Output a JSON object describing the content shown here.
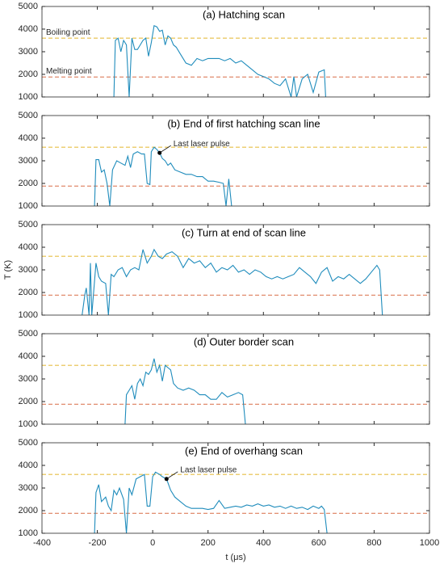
{
  "chart_data": [
    {
      "type": "line",
      "title": "(a) Hatching scan",
      "xlim": [
        -400,
        1000
      ],
      "ylim": [
        1000,
        5000
      ],
      "yticks": [
        1000,
        2000,
        3000,
        4000,
        5000
      ],
      "hlines": [
        {
          "value": 3600,
          "label": "Boiling point",
          "color": "#e6bf45"
        },
        {
          "value": 1880,
          "label": "Melting point",
          "color": "#dd7f5c"
        }
      ],
      "color": "#1f8cbc",
      "x": [
        -140,
        -135,
        -125,
        -115,
        -105,
        -95,
        -85,
        -75,
        -65,
        -55,
        -45,
        -35,
        -25,
        -15,
        -5,
        5,
        15,
        25,
        35,
        45,
        55,
        65,
        75,
        85,
        100,
        120,
        140,
        160,
        180,
        200,
        220,
        240,
        260,
        280,
        300,
        320,
        340,
        360,
        380,
        400,
        420,
        440,
        460,
        480,
        500,
        510,
        520,
        540,
        560,
        580,
        600,
        620,
        625
      ],
      "values": [
        1000,
        3500,
        3600,
        3000,
        3500,
        3300,
        1000,
        3600,
        3100,
        3100,
        3300,
        3500,
        3600,
        2800,
        3400,
        4150,
        4100,
        3900,
        3950,
        3300,
        3700,
        3600,
        3300,
        3200,
        2900,
        2500,
        2400,
        2700,
        2600,
        2700,
        2700,
        2700,
        2600,
        2700,
        2500,
        2600,
        2400,
        2200,
        2000,
        1900,
        1800,
        1600,
        1500,
        1800,
        1000,
        1900,
        1000,
        1800,
        2000,
        1200,
        2100,
        2200,
        1000
      ]
    },
    {
      "type": "line",
      "title": "(b) End of first hatching scan line",
      "xlim": [
        -400,
        1000
      ],
      "ylim": [
        1000,
        5000
      ],
      "yticks": [
        1000,
        2000,
        3000,
        4000,
        5000
      ],
      "hlines": [
        {
          "value": 3600,
          "color": "#e6bf45"
        },
        {
          "value": 1880,
          "color": "#dd7f5c"
        }
      ],
      "annotations": [
        {
          "text": "Last laser pulse",
          "x": 25,
          "y": 3350
        }
      ],
      "color": "#1f8cbc",
      "x": [
        -210,
        -205,
        -195,
        -185,
        -175,
        -165,
        -155,
        -145,
        -130,
        -115,
        -100,
        -90,
        -80,
        -70,
        -55,
        -40,
        -30,
        -20,
        -10,
        -5,
        5,
        15,
        25,
        35,
        45,
        55,
        65,
        80,
        100,
        120,
        140,
        160,
        180,
        200,
        220,
        240,
        255,
        265,
        275,
        285
      ],
      "values": [
        1000,
        3050,
        3050,
        2500,
        2600,
        2000,
        1000,
        2600,
        3000,
        2900,
        2800,
        3200,
        2700,
        3300,
        3400,
        3300,
        3300,
        2000,
        1950,
        3400,
        3600,
        3500,
        3350,
        3100,
        3000,
        2800,
        2900,
        2600,
        2500,
        2400,
        2400,
        2300,
        2300,
        2100,
        2100,
        2050,
        2000,
        1000,
        2200,
        1000
      ]
    },
    {
      "type": "line",
      "title": "(c) Turn at end of scan line",
      "ylabel": "T (K)",
      "xlim": [
        -400,
        1000
      ],
      "ylim": [
        1000,
        5000
      ],
      "yticks": [
        1000,
        2000,
        3000,
        4000,
        5000
      ],
      "hlines": [
        {
          "value": 3600,
          "color": "#e6bf45"
        },
        {
          "value": 1880,
          "color": "#dd7f5c"
        }
      ],
      "color": "#1f8cbc",
      "x": [
        -255,
        -245,
        -240,
        -230,
        -225,
        -220,
        -205,
        -195,
        -185,
        -170,
        -160,
        -150,
        -140,
        -125,
        -110,
        -95,
        -80,
        -65,
        -50,
        -35,
        -20,
        -5,
        5,
        20,
        35,
        50,
        70,
        90,
        110,
        130,
        150,
        170,
        190,
        210,
        230,
        250,
        270,
        290,
        310,
        330,
        350,
        370,
        390,
        410,
        430,
        450,
        470,
        490,
        510,
        530,
        550,
        570,
        590,
        610,
        630,
        650,
        670,
        690,
        710,
        730,
        750,
        770,
        790,
        810,
        820,
        830
      ],
      "values": [
        1000,
        1900,
        2200,
        1000,
        3300,
        1000,
        3300,
        2700,
        2500,
        2400,
        1000,
        2800,
        2700,
        3000,
        3100,
        2700,
        3000,
        3100,
        3000,
        3900,
        3300,
        3600,
        3900,
        3600,
        3500,
        3700,
        3800,
        3600,
        3100,
        3500,
        3300,
        3400,
        3100,
        3300,
        2900,
        3100,
        3000,
        3200,
        2900,
        3000,
        2800,
        3000,
        2900,
        2700,
        2600,
        2700,
        2600,
        2700,
        2800,
        3100,
        2900,
        2700,
        2400,
        2900,
        3100,
        2500,
        2700,
        2600,
        2800,
        2600,
        2400,
        2600,
        2900,
        3200,
        3000,
        1000
      ]
    },
    {
      "type": "line",
      "title": "(d) Outer border scan",
      "xlim": [
        -400,
        1000
      ],
      "ylim": [
        1000,
        5000
      ],
      "yticks": [
        1000,
        2000,
        3000,
        4000,
        5000
      ],
      "hlines": [
        {
          "value": 3600,
          "color": "#e6bf45"
        },
        {
          "value": 1880,
          "color": "#dd7f5c"
        }
      ],
      "color": "#1f8cbc",
      "x": [
        -100,
        -95,
        -85,
        -75,
        -65,
        -55,
        -45,
        -35,
        -25,
        -15,
        -5,
        5,
        15,
        25,
        35,
        45,
        55,
        65,
        75,
        90,
        110,
        130,
        150,
        170,
        190,
        210,
        230,
        250,
        270,
        290,
        310,
        325,
        335
      ],
      "values": [
        1000,
        2300,
        2500,
        2700,
        2100,
        2800,
        3000,
        2700,
        3300,
        3200,
        3400,
        3900,
        3300,
        3600,
        2900,
        3600,
        3500,
        3400,
        2800,
        2600,
        2500,
        2600,
        2500,
        2300,
        2300,
        2100,
        2100,
        2400,
        2200,
        2300,
        2400,
        2300,
        1000
      ]
    },
    {
      "type": "line",
      "title": "(e) End of overhang scan",
      "xlabel": "t (μs)",
      "xlim": [
        -400,
        1000
      ],
      "ylim": [
        1000,
        5000
      ],
      "yticks": [
        1000,
        2000,
        3000,
        4000,
        5000
      ],
      "xticks": [
        -400,
        -200,
        0,
        200,
        400,
        600,
        800,
        1000
      ],
      "hlines": [
        {
          "value": 3600,
          "color": "#e6bf45"
        },
        {
          "value": 1880,
          "color": "#dd7f5c"
        }
      ],
      "annotations": [
        {
          "text": "Last laser pulse",
          "x": 50,
          "y": 3400
        }
      ],
      "color": "#1f8cbc",
      "x": [
        -210,
        -205,
        -195,
        -185,
        -170,
        -160,
        -150,
        -140,
        -130,
        -120,
        -105,
        -95,
        -85,
        -75,
        -60,
        -45,
        -30,
        -20,
        -10,
        0,
        10,
        25,
        35,
        50,
        65,
        80,
        100,
        120,
        140,
        160,
        180,
        200,
        220,
        240,
        260,
        280,
        300,
        320,
        340,
        360,
        380,
        400,
        420,
        440,
        460,
        480,
        500,
        520,
        540,
        560,
        580,
        600,
        610,
        620,
        630
      ],
      "values": [
        1000,
        2800,
        3150,
        2400,
        2600,
        2200,
        2000,
        2900,
        2700,
        3000,
        2500,
        1000,
        3000,
        2700,
        3400,
        3500,
        3600,
        2200,
        2200,
        3500,
        3700,
        3600,
        3500,
        3400,
        2900,
        2600,
        2400,
        2200,
        2100,
        2100,
        2100,
        2050,
        2100,
        2450,
        2100,
        2150,
        2200,
        2150,
        2250,
        2200,
        2300,
        2200,
        2250,
        2150,
        2200,
        2100,
        2200,
        2100,
        2150,
        2050,
        2200,
        2100,
        2200,
        2050,
        1000
      ]
    }
  ]
}
